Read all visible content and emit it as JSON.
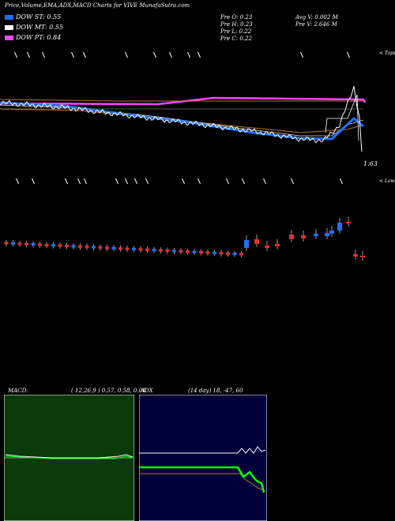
{
  "header": {
    "title": "Price,Volume,EMA,ADX,MACD Charts for VIVE MunafaSutra.com"
  },
  "legend": [
    {
      "label": "DOW ST: 0.55",
      "color": "#1f6fff"
    },
    {
      "label": "DOW MT: 0.55",
      "color": "#ffffff"
    },
    {
      "label": "DOW PT: 0.84",
      "color": "#ff44ff"
    }
  ],
  "stats": {
    "prev_open": "Pre   O: 0.23",
    "prev_high": "Pre   H: 0.23",
    "prev_low": "Pre   L: 0.22",
    "prev_close": "Pre   C: 0.22",
    "avg_vol": "Avg V: 0.002  M",
    "prev_vol": "Pre   V: 2.646  M"
  },
  "labels": {
    "tops": "< Tops",
    "lows": "< Lows",
    "last_price": "1.63"
  },
  "colors": {
    "ema_blue": "#1f6fff",
    "price_white": "#ffffff",
    "pt_magenta": "#ff44ff",
    "ema_brown": "#b8732a",
    "bull": "#1f6fff",
    "bear": "#e03030",
    "macd_bg": "#0a3a0a",
    "adx_bg": "#00003a",
    "adx_green": "#00ff00"
  },
  "macd": {
    "label": "MACD:",
    "params": "( 12,26,9 ) 0.57,  0.58,  0.04"
  },
  "adx": {
    "label": "ADX",
    "params": "(14  day) 18,  -47,  60"
  },
  "chart_data": {
    "type": "line",
    "title": "Price,Volume,EMA,ADX,MACD Charts for VIVE MunafaSutra.com",
    "series": [
      {
        "name": "DOW ST",
        "values": [
          0.55
        ]
      },
      {
        "name": "DOW MT",
        "values": [
          0.55
        ]
      },
      {
        "name": "DOW PT",
        "values": [
          0.84
        ]
      }
    ],
    "annotations": [
      "1.63"
    ]
  }
}
